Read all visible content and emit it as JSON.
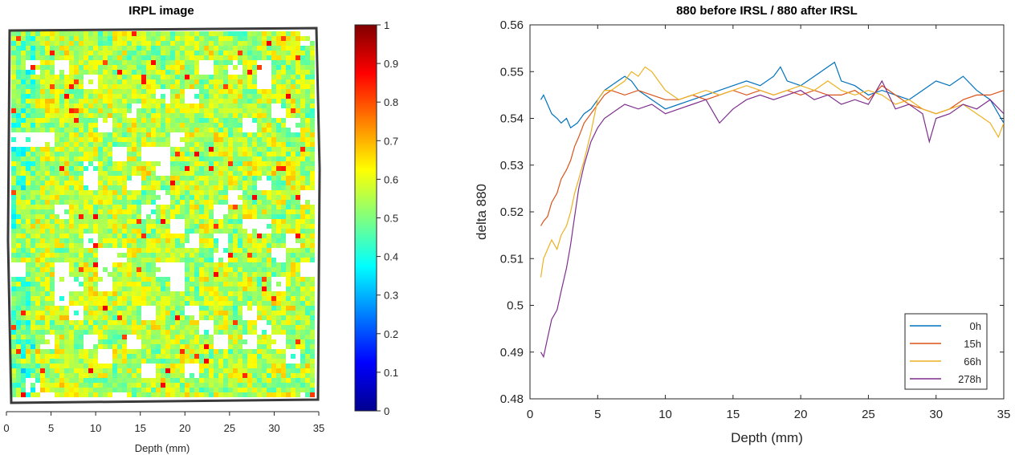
{
  "chart_data": [
    {
      "type": "heatmap",
      "title": "IRPL image",
      "xlabel": "Depth (mm)",
      "ylabel": "",
      "xlim": [
        0,
        35
      ],
      "x_ticks": [
        "0",
        "5",
        "10",
        "15",
        "20",
        "25",
        "30",
        "35"
      ],
      "colorbar": {
        "colormap": "jet",
        "range": [
          0,
          1
        ],
        "ticks": [
          "0",
          "0.1",
          "0.2",
          "0.3",
          "0.4",
          "0.5",
          "0.6",
          "0.7",
          "0.8",
          "0.9",
          "1"
        ]
      },
      "dominant_value_range": [
        0.4,
        0.7
      ],
      "grid": false
    },
    {
      "type": "line",
      "title": "880 before IRSL / 880 after IRSL",
      "xlabel": "Depth (mm)",
      "ylabel": "delta 880",
      "xlim": [
        0,
        35
      ],
      "ylim": [
        0.48,
        0.56
      ],
      "x_ticks": [
        "0",
        "5",
        "10",
        "15",
        "20",
        "25",
        "30",
        "35"
      ],
      "y_ticks": [
        "0.48",
        "0.49",
        "0.5",
        "0.51",
        "0.52",
        "0.53",
        "0.54",
        "0.55",
        "0.56"
      ],
      "grid": false,
      "legend_position": "bottom-right",
      "colors": {
        "0h": "#0072BD",
        "15h": "#D95319",
        "66h": "#EDB120",
        "278h": "#7E2F8E"
      },
      "series": [
        {
          "name": "0h",
          "x": [
            0.8,
            1,
            1.3,
            1.6,
            2,
            2.3,
            2.7,
            3,
            3.5,
            4,
            4.5,
            5,
            5.5,
            6,
            6.5,
            7,
            7.5,
            8,
            8.5,
            9,
            9.5,
            10,
            11,
            12,
            13,
            14,
            15,
            16,
            17,
            18,
            18.5,
            19,
            20,
            21,
            22,
            22.5,
            23,
            24,
            25,
            26,
            27,
            28,
            29,
            30,
            31,
            32,
            33,
            34,
            35
          ],
          "y": [
            0.544,
            0.545,
            0.543,
            0.541,
            0.54,
            0.539,
            0.54,
            0.538,
            0.539,
            0.541,
            0.542,
            0.544,
            0.546,
            0.547,
            0.548,
            0.549,
            0.548,
            0.546,
            0.545,
            0.544,
            0.543,
            0.542,
            0.543,
            0.544,
            0.545,
            0.546,
            0.547,
            0.548,
            0.547,
            0.549,
            0.551,
            0.548,
            0.547,
            0.549,
            0.551,
            0.552,
            0.548,
            0.547,
            0.545,
            0.546,
            0.545,
            0.544,
            0.546,
            0.548,
            0.547,
            0.549,
            0.546,
            0.544,
            0.539
          ]
        },
        {
          "name": "15h",
          "x": [
            0.8,
            1,
            1.3,
            1.6,
            2,
            2.3,
            2.7,
            3,
            3.3,
            3.6,
            4,
            4.5,
            5,
            5.5,
            6,
            7,
            8,
            9,
            10,
            11,
            12,
            13,
            14,
            15,
            16,
            17,
            18,
            19,
            20,
            21,
            22,
            23,
            24,
            25,
            26,
            27,
            28,
            29,
            30,
            31,
            32,
            33,
            34,
            35
          ],
          "y": [
            0.517,
            0.518,
            0.519,
            0.522,
            0.524,
            0.527,
            0.529,
            0.531,
            0.534,
            0.536,
            0.539,
            0.541,
            0.543,
            0.545,
            0.546,
            0.545,
            0.546,
            0.545,
            0.544,
            0.544,
            0.545,
            0.544,
            0.545,
            0.546,
            0.545,
            0.546,
            0.545,
            0.546,
            0.545,
            0.546,
            0.545,
            0.545,
            0.546,
            0.544,
            0.547,
            0.545,
            0.543,
            0.542,
            0.541,
            0.542,
            0.544,
            0.545,
            0.545,
            0.546
          ]
        },
        {
          "name": "66h",
          "x": [
            0.8,
            1,
            1.3,
            1.6,
            2,
            2.3,
            2.7,
            3,
            3.3,
            3.6,
            4,
            4.5,
            5,
            5.5,
            6,
            6.5,
            7,
            7.5,
            8,
            8.5,
            9,
            9.5,
            10,
            11,
            12,
            13,
            14,
            15,
            16,
            17,
            18,
            19,
            20,
            21,
            22,
            23,
            24,
            25,
            26,
            27,
            28,
            29,
            30,
            31,
            32,
            33,
            34,
            34.6,
            35
          ],
          "y": [
            0.506,
            0.51,
            0.512,
            0.514,
            0.512,
            0.515,
            0.517,
            0.52,
            0.524,
            0.527,
            0.531,
            0.537,
            0.544,
            0.546,
            0.546,
            0.547,
            0.548,
            0.55,
            0.549,
            0.551,
            0.55,
            0.548,
            0.546,
            0.544,
            0.545,
            0.546,
            0.545,
            0.546,
            0.547,
            0.546,
            0.545,
            0.546,
            0.547,
            0.546,
            0.548,
            0.546,
            0.545,
            0.546,
            0.545,
            0.543,
            0.544,
            0.542,
            0.541,
            0.542,
            0.543,
            0.541,
            0.539,
            0.536,
            0.539
          ]
        },
        {
          "name": "278h",
          "x": [
            0.8,
            1,
            1.3,
            1.6,
            2,
            2.3,
            2.7,
            3,
            3.3,
            3.6,
            4,
            4.5,
            5,
            5.5,
            6,
            6.5,
            7,
            8,
            9,
            10,
            11,
            12,
            13,
            14,
            15,
            16,
            17,
            18,
            19,
            20,
            21,
            22,
            23,
            24,
            25,
            26,
            27,
            28,
            29,
            29.5,
            30,
            31,
            32,
            33,
            34,
            35
          ],
          "y": [
            0.49,
            0.489,
            0.493,
            0.497,
            0.499,
            0.503,
            0.508,
            0.513,
            0.519,
            0.525,
            0.53,
            0.535,
            0.538,
            0.54,
            0.541,
            0.542,
            0.543,
            0.542,
            0.543,
            0.541,
            0.542,
            0.543,
            0.544,
            0.539,
            0.542,
            0.544,
            0.545,
            0.544,
            0.545,
            0.546,
            0.544,
            0.545,
            0.543,
            0.544,
            0.543,
            0.548,
            0.542,
            0.543,
            0.541,
            0.535,
            0.54,
            0.541,
            0.543,
            0.542,
            0.544,
            0.541
          ]
        }
      ]
    }
  ]
}
